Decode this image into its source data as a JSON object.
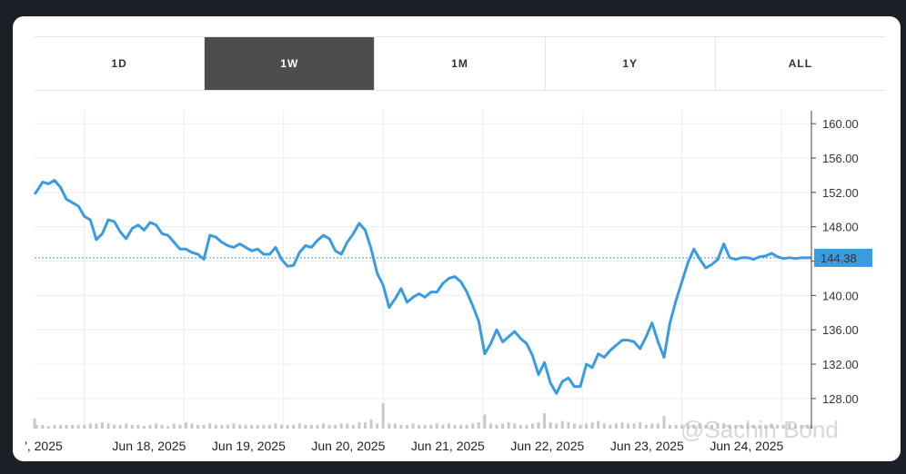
{
  "tabs": [
    {
      "label": "1D",
      "active": false
    },
    {
      "label": "1W",
      "active": true
    },
    {
      "label": "1M",
      "active": false
    },
    {
      "label": "1Y",
      "active": false
    },
    {
      "label": "ALL",
      "active": false
    }
  ],
  "watermark": "@Sachin Bond",
  "colors": {
    "line": "#3a9be0",
    "tab_active": "#4d4d4d",
    "volume": "#c8c8c8",
    "price_label_bg": "#3a9be0"
  },
  "chart_data": {
    "type": "line",
    "title": "",
    "xlabel": "",
    "ylabel": "",
    "ylim": [
      124.5,
      161.5
    ],
    "y_ticks": [
      "160.00",
      "156.00",
      "152.00",
      "148.00",
      "144.00",
      "140.00",
      "136.00",
      "132.00",
      "128.00"
    ],
    "x_ticks": [
      "', 2025",
      "Jun 18, 2025",
      "Jun 19, 2025",
      "Jun 20, 2025",
      "Jun 21, 2025",
      "Jun 22, 2025",
      "Jun 23, 2025",
      "Jun 24, 2025"
    ],
    "current_price": "144.38",
    "current_value": 144.38,
    "grid": true,
    "x_range": [
      17.0,
      24.8
    ],
    "series": [
      {
        "x": [
          17.0,
          17.02,
          17.08,
          17.14,
          17.2,
          17.26,
          17.32,
          17.38,
          17.44,
          17.5,
          17.56,
          17.62,
          17.68,
          17.74,
          17.8,
          17.86,
          17.92,
          17.98,
          18.04,
          18.1,
          18.16,
          18.22,
          18.28,
          18.34,
          18.4,
          18.46,
          18.52,
          18.58,
          18.64,
          18.7,
          18.76,
          18.82,
          18.88,
          18.94,
          19.0,
          19.06,
          19.12,
          19.18,
          19.24,
          19.3,
          19.36,
          19.42,
          19.48,
          19.54,
          19.6,
          19.66,
          19.72,
          19.78,
          19.84,
          19.9,
          19.96,
          20.02,
          20.08,
          20.14,
          20.2,
          20.26,
          20.32,
          20.38,
          20.44,
          20.5,
          20.56,
          20.62,
          20.68,
          20.74,
          20.8,
          20.86,
          20.92,
          20.98,
          21.04,
          21.1,
          21.16,
          21.22,
          21.28,
          21.34,
          21.4,
          21.46,
          21.52,
          21.58,
          21.64,
          21.7,
          21.76,
          21.82,
          21.88,
          21.94,
          22.0,
          22.06,
          22.12,
          22.18,
          22.24,
          22.3,
          22.36,
          22.42,
          22.48,
          22.54,
          22.6,
          22.66,
          22.72,
          22.78,
          22.84,
          22.9,
          22.96,
          23.02,
          23.08,
          23.14,
          23.2,
          23.26,
          23.32,
          23.38,
          23.44,
          23.5,
          23.56,
          23.62,
          23.68,
          23.74,
          23.8,
          23.86,
          23.92,
          23.98,
          24.04,
          24.1,
          24.16,
          24.22,
          24.28,
          24.34,
          24.4,
          24.46,
          24.52,
          24.58,
          24.64,
          24.7,
          24.76,
          24.8
        ],
        "values": [
          151.8,
          152.1,
          153.2,
          153.0,
          153.4,
          152.6,
          151.2,
          150.8,
          150.4,
          149.2,
          148.8,
          146.5,
          147.2,
          148.8,
          148.6,
          147.4,
          146.6,
          147.8,
          148.2,
          147.6,
          148.5,
          148.2,
          147.2,
          147.0,
          146.2,
          145.4,
          145.4,
          145.0,
          144.8,
          144.2,
          147.0,
          146.8,
          146.2,
          145.8,
          145.6,
          146.0,
          145.6,
          145.2,
          145.4,
          144.8,
          144.8,
          145.6,
          144.2,
          143.4,
          143.5,
          145.0,
          145.8,
          145.6,
          146.4,
          147.0,
          146.6,
          145.2,
          144.8,
          146.2,
          147.2,
          148.4,
          147.6,
          145.4,
          142.6,
          141.2,
          138.6,
          139.6,
          140.8,
          139.2,
          139.8,
          140.2,
          139.8,
          140.4,
          140.4,
          141.4,
          142.0,
          142.2,
          141.6,
          140.4,
          138.8,
          137.0,
          133.2,
          134.4,
          136.0,
          134.6,
          135.2,
          135.8,
          135.0,
          134.4,
          133.0,
          130.8,
          132.2,
          129.8,
          128.6,
          130.0,
          130.4,
          129.4,
          129.4,
          132.0,
          131.6,
          133.2,
          132.8,
          133.6,
          134.2,
          134.8,
          134.8,
          134.6,
          133.8,
          135.2,
          136.8,
          134.6,
          132.8,
          136.8,
          139.4,
          141.6,
          143.8,
          145.4,
          144.2,
          143.2,
          143.6,
          144.2,
          146.0,
          144.4,
          144.2,
          144.4,
          144.4,
          144.2,
          144.5,
          144.6,
          144.9,
          144.5,
          144.3,
          144.4,
          144.3,
          144.38,
          144.38,
          144.38
        ],
        "volume": [
          8,
          3,
          3,
          2,
          3,
          3,
          3,
          3,
          3,
          3,
          4,
          4,
          5,
          4,
          3,
          3,
          4,
          3,
          3,
          2,
          3,
          4,
          3,
          2,
          4,
          3,
          5,
          4,
          3,
          3,
          4,
          3,
          3,
          3,
          4,
          3,
          3,
          3,
          3,
          3,
          3,
          4,
          3,
          3,
          3,
          4,
          3,
          3,
          3,
          4,
          3,
          3,
          4,
          4,
          3,
          5,
          5,
          7,
          4,
          20,
          4,
          4,
          3,
          3,
          4,
          3,
          3,
          3,
          4,
          3,
          4,
          3,
          3,
          3,
          4,
          5,
          11,
          4,
          3,
          4,
          5,
          4,
          3,
          3,
          4,
          5,
          12,
          5,
          4,
          6,
          5,
          4,
          3,
          4,
          5,
          6,
          4,
          3,
          4,
          5,
          4,
          4,
          5,
          3,
          4,
          4,
          10,
          3,
          3,
          3,
          4,
          3,
          4,
          3,
          3,
          4,
          4,
          3,
          3,
          3,
          4,
          3,
          3,
          3,
          4,
          3,
          3,
          4,
          3,
          3,
          3,
          3
        ]
      }
    ]
  }
}
